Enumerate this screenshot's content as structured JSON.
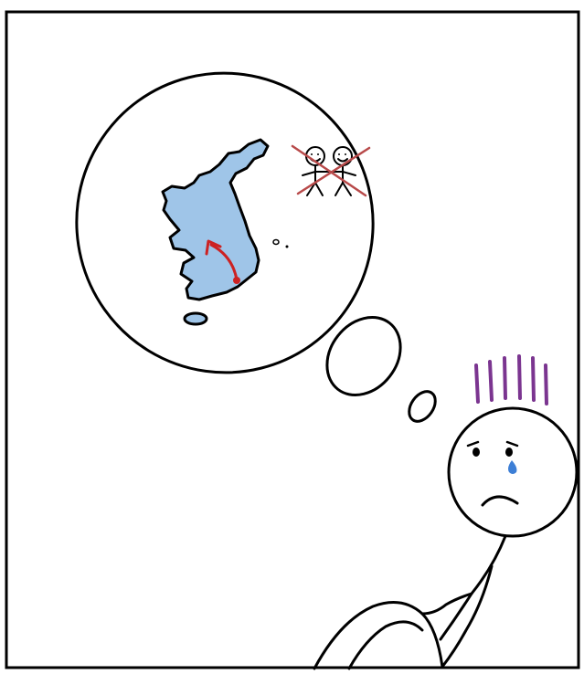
{
  "colors": {
    "outline": "#000000",
    "background": "#ffffff",
    "map_fill": "#9fc5e8",
    "arrow": "#cc2222",
    "cross": "#b84a4a",
    "gloom_lines": "#7b3590",
    "tear": "#3d7fd6"
  },
  "illustration": {
    "panel": "comic-panel",
    "thought_bubble": "thought-bubble",
    "map": "korean-peninsula-map",
    "arrow": "curved-arrow",
    "crossed_figures": "crossed-out-stick-figures",
    "character": "sad-stick-figure",
    "gloom_lines": "gloom-lines",
    "tear": "teardrop"
  }
}
